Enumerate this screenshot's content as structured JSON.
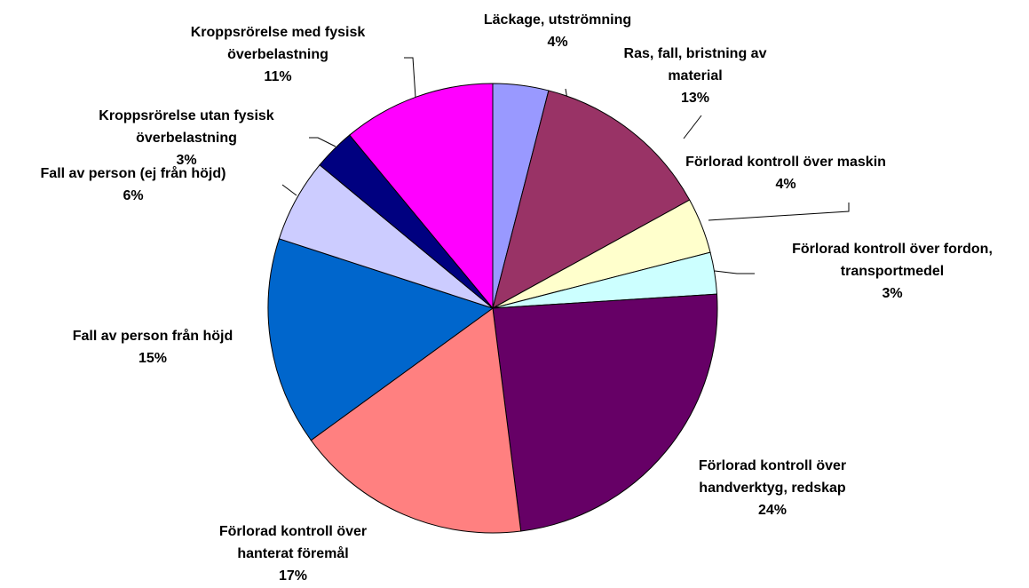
{
  "chart_data": {
    "type": "pie",
    "categories": [
      "Läckage, utströmning",
      "Ras, fall, bristning av material",
      "Förlorad kontroll över maskin",
      "Förlorad kontroll över fordon, transportmedel",
      "Förlorad kontroll över handverktyg, redskap",
      "Förlorad kontroll över hanterat föremål",
      "Fall av person från höjd",
      "Fall av person (ej från höjd)",
      "Kroppsrörelse utan fysisk överbelastning",
      "Kroppsrörelse med fysisk överbelastning"
    ],
    "values": [
      4,
      13,
      4,
      3,
      24,
      17,
      15,
      6,
      3,
      11
    ],
    "value_labels": [
      "4%",
      "13%",
      "4%",
      "3%",
      "24%",
      "17%",
      "15%",
      "6%",
      "3%",
      "11%"
    ],
    "colors": [
      "#9999ff",
      "#993366",
      "#ffffcc",
      "#ccffff",
      "#660066",
      "#ff8080",
      "#0066cc",
      "#ccccff",
      "#000080",
      "#ff00ff"
    ]
  }
}
